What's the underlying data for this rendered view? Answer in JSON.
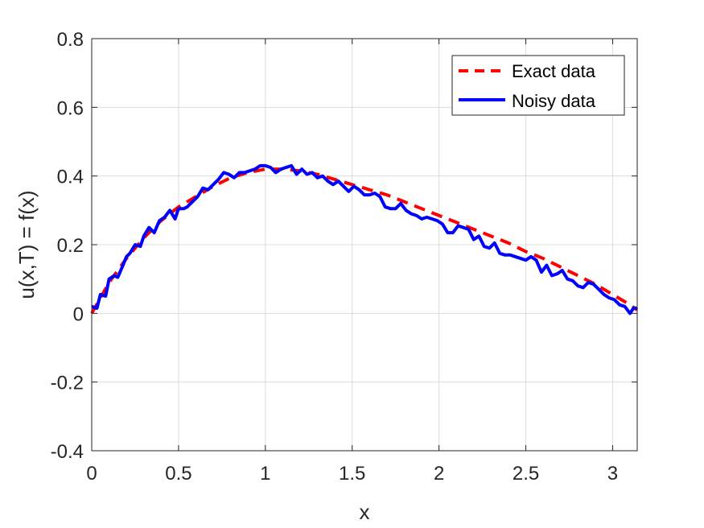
{
  "chart_data": {
    "type": "line",
    "title": "",
    "xlabel": "x",
    "ylabel": "u(x,T) = f(x)",
    "xlim": [
      0,
      3.14159
    ],
    "ylim": [
      -0.4,
      0.8
    ],
    "xticks": [
      0,
      0.5,
      1,
      1.5,
      2,
      2.5,
      3
    ],
    "xtick_labels": [
      "0",
      "0.5",
      "1",
      "1.5",
      "2",
      "2.5",
      "3"
    ],
    "yticks": [
      -0.4,
      -0.2,
      0,
      0.2,
      0.4,
      0.6,
      0.8
    ],
    "ytick_labels": [
      "-0.4",
      "-0.2",
      "0",
      "0.2",
      "0.4",
      "0.6",
      "0.8"
    ],
    "grid": true,
    "legend_position": "top-right",
    "series": [
      {
        "name": "Exact data",
        "color": "#ff0000",
        "style": "dashed",
        "x": [
          0,
          0.1,
          0.2,
          0.3,
          0.4,
          0.5,
          0.6,
          0.7,
          0.8,
          0.9,
          1.0,
          1.1,
          1.2,
          1.3,
          1.4,
          1.5,
          1.6,
          1.7,
          1.8,
          1.9,
          2.0,
          2.1,
          2.2,
          2.3,
          2.4,
          2.5,
          2.6,
          2.7,
          2.8,
          2.9,
          3.0,
          3.1,
          3.14159
        ],
        "y": [
          0.0,
          0.09,
          0.16,
          0.22,
          0.27,
          0.31,
          0.34,
          0.37,
          0.395,
          0.41,
          0.42,
          0.42,
          0.415,
          0.405,
          0.39,
          0.375,
          0.36,
          0.345,
          0.325,
          0.305,
          0.285,
          0.265,
          0.245,
          0.225,
          0.205,
          0.18,
          0.16,
          0.135,
          0.11,
          0.085,
          0.055,
          0.025,
          0.01
        ]
      },
      {
        "name": "Noisy data",
        "color": "#0000ff",
        "style": "solid",
        "x": [
          0,
          0.03,
          0.05,
          0.08,
          0.1,
          0.13,
          0.15,
          0.18,
          0.2,
          0.22,
          0.25,
          0.28,
          0.3,
          0.33,
          0.36,
          0.39,
          0.42,
          0.45,
          0.48,
          0.5,
          0.53,
          0.55,
          0.58,
          0.61,
          0.64,
          0.67,
          0.7,
          0.73,
          0.76,
          0.79,
          0.82,
          0.85,
          0.88,
          0.91,
          0.94,
          0.97,
          1.0,
          1.03,
          1.06,
          1.09,
          1.12,
          1.15,
          1.18,
          1.21,
          1.24,
          1.27,
          1.3,
          1.33,
          1.36,
          1.39,
          1.42,
          1.45,
          1.48,
          1.51,
          1.54,
          1.57,
          1.6,
          1.63,
          1.66,
          1.69,
          1.72,
          1.75,
          1.78,
          1.81,
          1.84,
          1.87,
          1.9,
          1.93,
          1.96,
          1.99,
          2.02,
          2.05,
          2.08,
          2.11,
          2.14,
          2.17,
          2.2,
          2.23,
          2.26,
          2.29,
          2.32,
          2.35,
          2.38,
          2.41,
          2.44,
          2.47,
          2.5,
          2.53,
          2.56,
          2.59,
          2.62,
          2.65,
          2.68,
          2.71,
          2.74,
          2.77,
          2.8,
          2.83,
          2.86,
          2.89,
          2.92,
          2.95,
          2.98,
          3.01,
          3.04,
          3.07,
          3.1,
          3.12,
          3.14159
        ],
        "y": [
          0.02,
          0.015,
          0.055,
          0.05,
          0.1,
          0.11,
          0.105,
          0.14,
          0.165,
          0.175,
          0.2,
          0.195,
          0.225,
          0.25,
          0.235,
          0.27,
          0.28,
          0.3,
          0.275,
          0.305,
          0.305,
          0.31,
          0.325,
          0.34,
          0.365,
          0.36,
          0.375,
          0.39,
          0.41,
          0.405,
          0.395,
          0.41,
          0.41,
          0.415,
          0.42,
          0.43,
          0.43,
          0.425,
          0.41,
          0.42,
          0.425,
          0.43,
          0.405,
          0.42,
          0.405,
          0.41,
          0.395,
          0.4,
          0.385,
          0.375,
          0.385,
          0.37,
          0.355,
          0.37,
          0.36,
          0.345,
          0.345,
          0.35,
          0.34,
          0.31,
          0.305,
          0.305,
          0.32,
          0.3,
          0.29,
          0.285,
          0.275,
          0.28,
          0.275,
          0.27,
          0.26,
          0.235,
          0.235,
          0.255,
          0.25,
          0.245,
          0.215,
          0.225,
          0.195,
          0.19,
          0.205,
          0.175,
          0.17,
          0.17,
          0.165,
          0.16,
          0.155,
          0.165,
          0.155,
          0.12,
          0.14,
          0.11,
          0.115,
          0.125,
          0.1,
          0.095,
          0.08,
          0.075,
          0.09,
          0.085,
          0.07,
          0.055,
          0.045,
          0.04,
          0.025,
          0.02,
          0.0,
          0.015,
          0.015
        ]
      }
    ]
  }
}
